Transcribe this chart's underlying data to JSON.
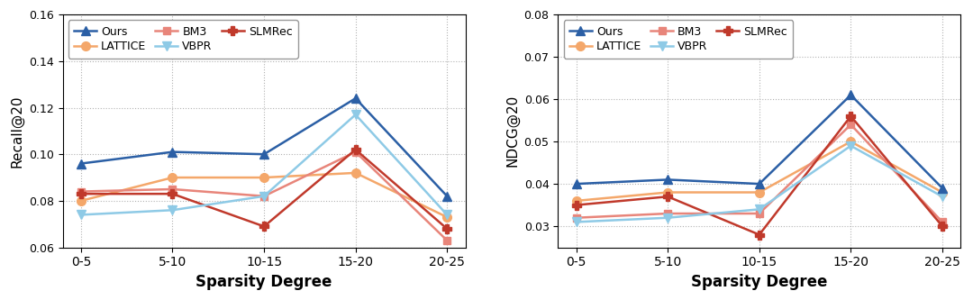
{
  "x_labels": [
    "0-5",
    "5-10",
    "10-15",
    "15-20",
    "20-25"
  ],
  "recall": {
    "Ours": [
      0.096,
      0.101,
      0.1,
      0.124,
      0.082
    ],
    "VBPR": [
      0.074,
      0.076,
      0.082,
      0.117,
      0.074
    ],
    "LATTICE": [
      0.08,
      0.09,
      0.09,
      0.092,
      0.073
    ],
    "SLMRec": [
      0.083,
      0.083,
      0.069,
      0.102,
      0.068
    ],
    "BM3": [
      0.084,
      0.085,
      0.082,
      0.101,
      0.063
    ]
  },
  "ndcg": {
    "Ours": [
      0.04,
      0.041,
      0.04,
      0.061,
      0.039
    ],
    "VBPR": [
      0.031,
      0.032,
      0.034,
      0.049,
      0.037
    ],
    "LATTICE": [
      0.036,
      0.038,
      0.038,
      0.05,
      0.038
    ],
    "SLMRec": [
      0.035,
      0.037,
      0.028,
      0.056,
      0.03
    ],
    "BM3": [
      0.032,
      0.033,
      0.033,
      0.054,
      0.031
    ]
  },
  "series_styles": {
    "Ours": {
      "color": "#2b5fa5",
      "marker": "^",
      "markersize": 7,
      "linewidth": 1.8,
      "zorder": 5
    },
    "VBPR": {
      "color": "#8ecae6",
      "marker": "v",
      "markersize": 7,
      "linewidth": 1.8,
      "zorder": 4
    },
    "LATTICE": {
      "color": "#f4a76a",
      "marker": "o",
      "markersize": 7,
      "linewidth": 1.8,
      "zorder": 3
    },
    "SLMRec": {
      "color": "#c0392b",
      "marker": "P",
      "markersize": 7,
      "linewidth": 1.8,
      "zorder": 3
    },
    "BM3": {
      "color": "#e8857a",
      "marker": "s",
      "markersize": 6,
      "linewidth": 1.8,
      "zorder": 3
    }
  },
  "recall_ylim": [
    0.06,
    0.16
  ],
  "recall_yticks": [
    0.06,
    0.08,
    0.1,
    0.12,
    0.14,
    0.16
  ],
  "ndcg_ylim": [
    0.025,
    0.08
  ],
  "ndcg_yticks": [
    0.03,
    0.04,
    0.05,
    0.06,
    0.07,
    0.08
  ],
  "xlabel": "Sparsity Degree",
  "ylabel_recall": "Recall@20",
  "ylabel_ndcg": "NDCG@20",
  "legend_row1": [
    "Ours",
    "LATTICE",
    "BM3"
  ],
  "legend_row2": [
    "VBPR",
    "SLMRec"
  ],
  "background_color": "#ffffff",
  "grid_color": "#aaaaaa",
  "fig_facecolor": "#ffffff"
}
